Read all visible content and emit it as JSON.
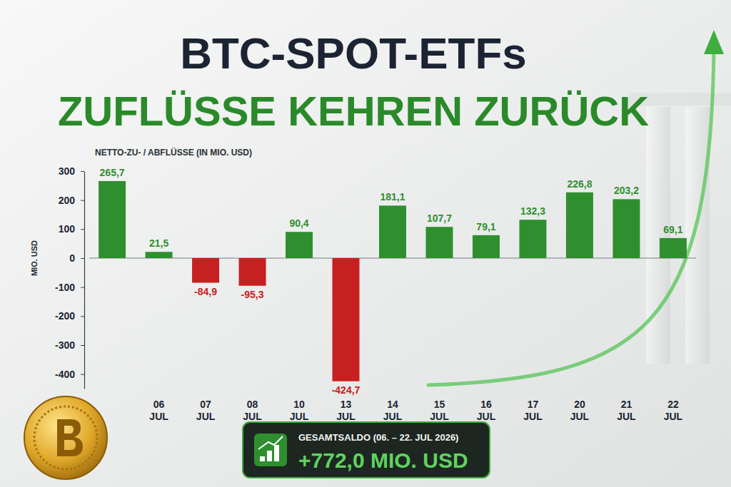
{
  "chart_data": {
    "type": "bar",
    "title": "BTC-SPOT-ETFs",
    "subtitle": "ZUFLÜSSE KEHREN ZURÜCK",
    "ylabel": "MIO. USD",
    "annotations": [
      "NETTO-ZU- / ABFLÜSSE (IN MIO. USD)",
      "GESAMTSALDO (06. – 22. JUL 2026)",
      "+772,0 MIO. USD"
    ],
    "categories": [
      null,
      "06 JUL",
      "07 JUL",
      "08 JUL",
      "10 JUL",
      "13 JUL",
      "14 JUL",
      "15 JUL",
      "16 JUL",
      "17 JUL",
      "20 JUL",
      "21 JUL",
      "22 JUL"
    ],
    "values": [
      265.7,
      21.5,
      -84.9,
      -95.3,
      90.4,
      -424.7,
      181.1,
      107.7,
      79.1,
      132.3,
      226.8,
      203.2,
      69.1
    ],
    "value_labels": [
      "265,7",
      "21,5",
      "-84,9",
      "-95,3",
      "90,4",
      "-424,7",
      "181,1",
      "107,7",
      "79,1",
      "132,3",
      "226,8",
      "203,2",
      "69,1"
    ],
    "colors": [
      "#2f8f2f",
      "#2f8f2f",
      "#c62020",
      "#c62020",
      "#2f8f2f",
      "#c62020",
      "#2f8f2f",
      "#2f8f2f",
      "#2f8f2f",
      "#2f8f2f",
      "#2f8f2f",
      "#2f8f2f",
      "#2f8f2f"
    ],
    "ylim": [
      -450,
      300
    ],
    "yticks": [
      300,
      200,
      100,
      0,
      -100,
      -200,
      -300,
      -400
    ],
    "grid": false,
    "data_labels": true
  }
}
